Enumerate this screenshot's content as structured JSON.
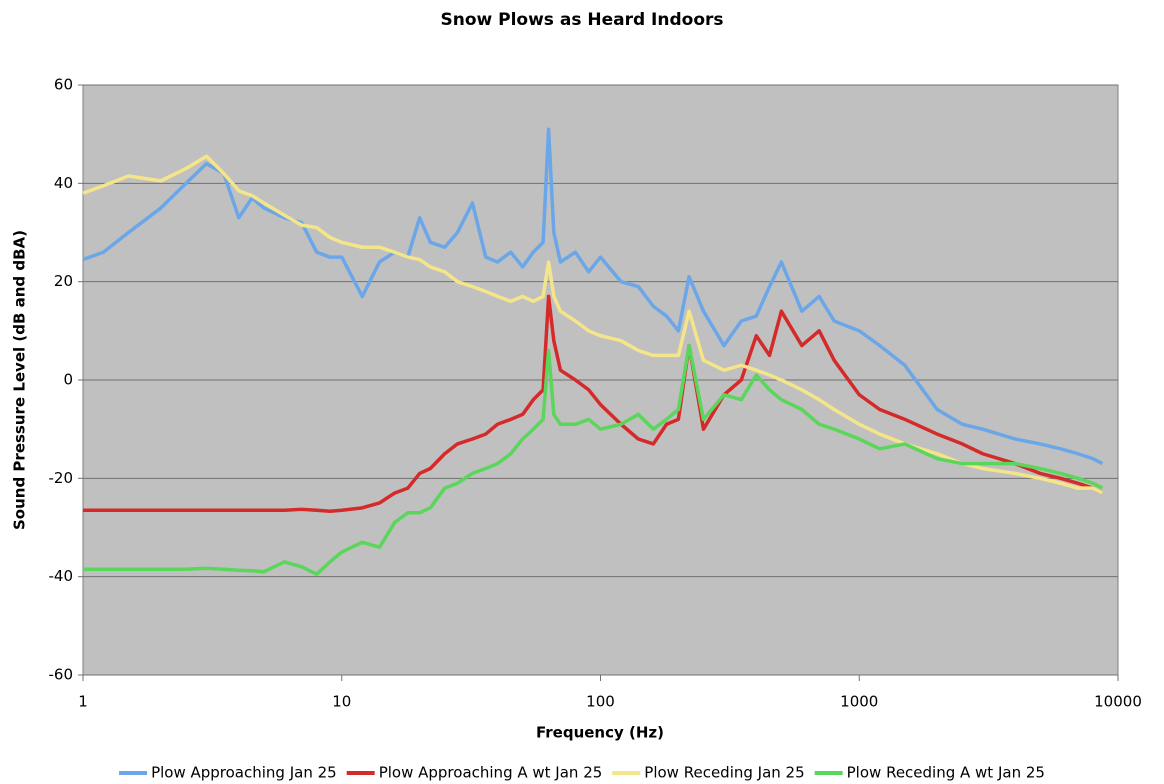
{
  "chart_data": {
    "type": "line",
    "title": "Snow Plows as Heard Indoors",
    "x_label": "Frequency (Hz)",
    "y_label": "Sound Pressure Level (dB and dBA)",
    "log_x": true,
    "grid": true,
    "legend": "bottom",
    "xlim": [
      1,
      10000
    ],
    "xticks": [
      1,
      10,
      100,
      1000,
      10000
    ],
    "ylim": [
      -60,
      60
    ],
    "yticks": [
      -60,
      -40,
      -20,
      0,
      20,
      40,
      60
    ],
    "x": [
      1,
      1.2,
      1.5,
      2,
      2.5,
      3,
      3.5,
      4,
      4.5,
      5,
      6,
      7,
      8,
      9,
      10,
      12,
      14,
      16,
      18,
      20,
      22,
      25,
      28,
      32,
      36,
      40,
      45,
      50,
      55,
      60,
      63,
      66,
      70,
      80,
      90,
      100,
      120,
      140,
      160,
      180,
      200,
      220,
      250,
      300,
      350,
      400,
      450,
      500,
      600,
      700,
      800,
      1000,
      1200,
      1500,
      2000,
      2500,
      3000,
      4000,
      5000,
      6000,
      7000,
      8000,
      8700
    ],
    "series": [
      {
        "name": "Plow Approaching Jan 25",
        "color": "#6aa6e8",
        "values": [
          24.5,
          26,
          30,
          35,
          40,
          44,
          42,
          33,
          37,
          35,
          33,
          32,
          26,
          25,
          25,
          17,
          24,
          26,
          25,
          33,
          28,
          27,
          30,
          36,
          25,
          24,
          26,
          23,
          26,
          28,
          51,
          30,
          24,
          26,
          22,
          25,
          20,
          19,
          15,
          13,
          10,
          21,
          14,
          7,
          12,
          13,
          19,
          24,
          14,
          17,
          12,
          10,
          7,
          3,
          -6,
          -9,
          -10,
          -12,
          -13,
          -14,
          -15,
          -16,
          -17
        ]
      },
      {
        "name": "Plow Approaching A wt Jan 25",
        "color": "#d42a2a",
        "values": [
          -26.5,
          -26.5,
          -26.5,
          -26.5,
          -26.5,
          -26.5,
          -26.5,
          -26.5,
          -26.5,
          -26.5,
          -26.5,
          -26.3,
          -26.5,
          -26.7,
          -26.5,
          -26,
          -25,
          -23,
          -22,
          -19,
          -18,
          -15,
          -13,
          -12,
          -11,
          -9,
          -8,
          -7,
          -4,
          -2,
          17,
          8,
          2,
          0,
          -2,
          -5,
          -9,
          -12,
          -13,
          -9,
          -8,
          7,
          -10,
          -3,
          0,
          9,
          5,
          14,
          7,
          10,
          4,
          -3,
          -6,
          -8,
          -11,
          -13,
          -15,
          -17,
          -19,
          -20,
          -21,
          -22,
          -23
        ]
      },
      {
        "name": "Plow Receding Jan 25",
        "color": "#f5e58a",
        "values": [
          38,
          39.5,
          41.5,
          40.5,
          43,
          45.5,
          42,
          38.5,
          37.5,
          36,
          33.5,
          31.5,
          31,
          29,
          28,
          27,
          27,
          26,
          25,
          24.5,
          23,
          22,
          20,
          19,
          18,
          17,
          16,
          17,
          16,
          17,
          24,
          17,
          14,
          12,
          10,
          9,
          8,
          6,
          5,
          5,
          5,
          14,
          4,
          2,
          3,
          2,
          1,
          0,
          -2,
          -4,
          -6,
          -9,
          -11,
          -13,
          -15,
          -17,
          -18,
          -19,
          -20,
          -21,
          -22,
          -22,
          -23
        ]
      },
      {
        "name": "Plow Receding A wt Jan 25",
        "color": "#5ad65a",
        "values": [
          -38.5,
          -38.5,
          -38.5,
          -38.5,
          -38.5,
          -38.3,
          -38.5,
          -38.7,
          -38.8,
          -39,
          -37,
          -38,
          -39.5,
          -37,
          -35,
          -33,
          -34,
          -29,
          -27,
          -27,
          -26,
          -22,
          -21,
          -19,
          -18,
          -17,
          -15,
          -12,
          -10,
          -8,
          6,
          -7,
          -9,
          -9,
          -8,
          -10,
          -9,
          -7,
          -10,
          -8,
          -6,
          7,
          -8,
          -3,
          -4,
          1,
          -2,
          -4,
          -6,
          -9,
          -10,
          -12,
          -14,
          -13,
          -16,
          -17,
          -17,
          -17,
          -18,
          -19,
          -20,
          -21,
          -22
        ]
      }
    ]
  }
}
